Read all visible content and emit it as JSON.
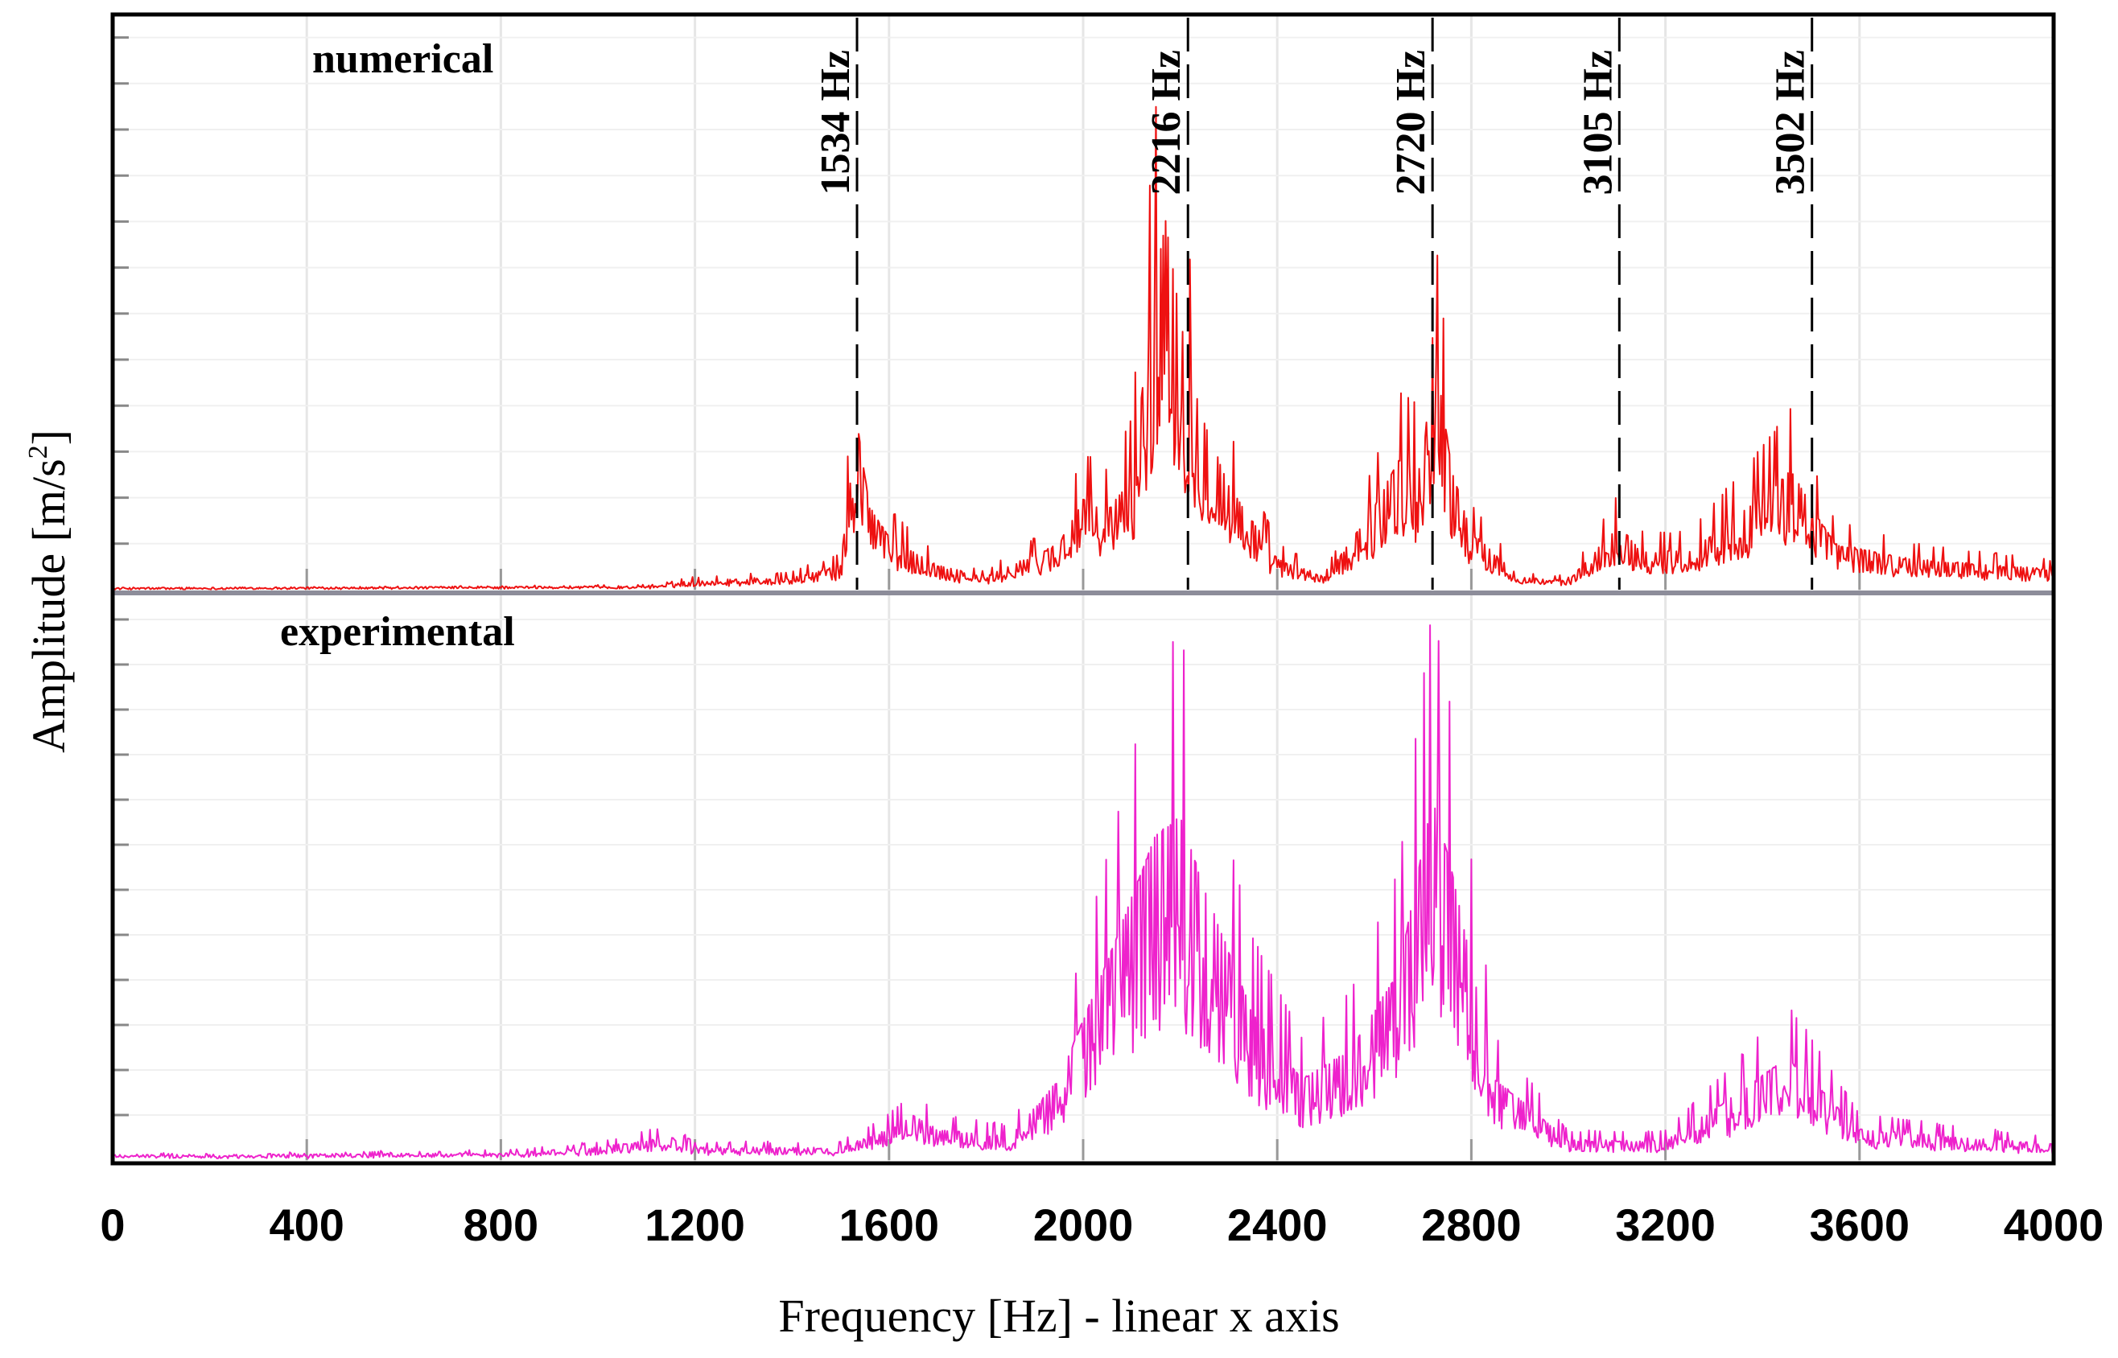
{
  "chart_data": {
    "type": "line",
    "xlabel": "Frequency [Hz] - linear x axis",
    "ylabel": "Amplitude [m/s",
    "ylabel_sup": "2",
    "ylabel_close": "]",
    "xlim": [
      0,
      4000
    ],
    "x_ticks": [
      "0",
      "400",
      "800",
      "1200",
      "1600",
      "2000",
      "2400",
      "2800",
      "3200",
      "3600",
      "4000"
    ],
    "x_tick_values": [
      0,
      400,
      800,
      1200,
      1600,
      2000,
      2400,
      2800,
      3200,
      3600,
      4000
    ],
    "panels": [
      {
        "name": "numerical",
        "label": "numerical",
        "color": "#ee1111",
        "ylim": [
          0,
          1
        ],
        "envelope": [
          [
            0,
            0.0
          ],
          [
            1100,
            0.005
          ],
          [
            1200,
            0.02
          ],
          [
            1400,
            0.03
          ],
          [
            1500,
            0.06
          ],
          [
            1534,
            0.45
          ],
          [
            1560,
            0.22
          ],
          [
            1600,
            0.14
          ],
          [
            1700,
            0.06
          ],
          [
            1800,
            0.03
          ],
          [
            1950,
            0.12
          ],
          [
            2000,
            0.24
          ],
          [
            2050,
            0.21
          ],
          [
            2100,
            0.3
          ],
          [
            2150,
            0.85
          ],
          [
            2170,
            1.0
          ],
          [
            2216,
            0.6
          ],
          [
            2250,
            0.45
          ],
          [
            2300,
            0.28
          ],
          [
            2400,
            0.08
          ],
          [
            2500,
            0.03
          ],
          [
            2600,
            0.22
          ],
          [
            2650,
            0.35
          ],
          [
            2700,
            0.32
          ],
          [
            2720,
            0.68
          ],
          [
            2760,
            0.32
          ],
          [
            2800,
            0.15
          ],
          [
            2900,
            0.03
          ],
          [
            3000,
            0.02
          ],
          [
            3105,
            0.17
          ],
          [
            3150,
            0.1
          ],
          [
            3250,
            0.1
          ],
          [
            3400,
            0.25
          ],
          [
            3460,
            0.32
          ],
          [
            3502,
            0.22
          ],
          [
            3550,
            0.12
          ],
          [
            3700,
            0.08
          ],
          [
            3800,
            0.07
          ],
          [
            4000,
            0.05
          ]
        ],
        "annotations": [
          {
            "x": 1534,
            "label": "1534 Hz"
          },
          {
            "x": 2216,
            "label": "2216 Hz"
          },
          {
            "x": 2720,
            "label": "2720 Hz"
          },
          {
            "x": 3105,
            "label": "3105 Hz"
          },
          {
            "x": 3502,
            "label": "3502 Hz"
          }
        ]
      },
      {
        "name": "experimental",
        "label": "experimental",
        "color": "#ee22cc",
        "ylim": [
          0,
          1
        ],
        "envelope": [
          [
            0,
            0.01
          ],
          [
            200,
            0.01
          ],
          [
            800,
            0.015
          ],
          [
            1000,
            0.03
          ],
          [
            1150,
            0.06
          ],
          [
            1200,
            0.03
          ],
          [
            1500,
            0.03
          ],
          [
            1600,
            0.08
          ],
          [
            1650,
            0.12
          ],
          [
            1700,
            0.08
          ],
          [
            1850,
            0.06
          ],
          [
            1950,
            0.22
          ],
          [
            2050,
            0.55
          ],
          [
            2150,
            0.9
          ],
          [
            2200,
            0.95
          ],
          [
            2250,
            0.75
          ],
          [
            2350,
            0.4
          ],
          [
            2450,
            0.22
          ],
          [
            2550,
            0.3
          ],
          [
            2650,
            0.52
          ],
          [
            2720,
            1.0
          ],
          [
            2760,
            0.8
          ],
          [
            2850,
            0.22
          ],
          [
            3000,
            0.05
          ],
          [
            3200,
            0.05
          ],
          [
            3350,
            0.18
          ],
          [
            3450,
            0.28
          ],
          [
            3500,
            0.22
          ],
          [
            3600,
            0.08
          ],
          [
            4000,
            0.04
          ]
        ]
      }
    ]
  }
}
